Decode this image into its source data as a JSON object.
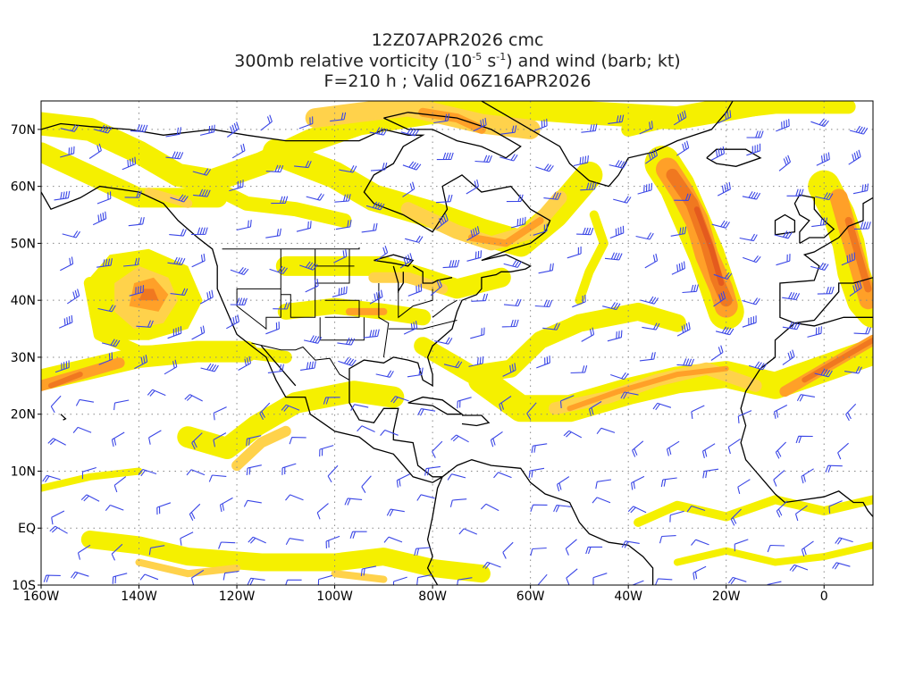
{
  "titles": {
    "line1": "12Z07APR2026 cmc",
    "line2_pre": "300mb relative vorticity (10",
    "line2_exp1": "-5",
    "line2_mid": " s",
    "line2_exp2": "-1",
    "line2_post": ") and wind (barb; kt)",
    "line3": "F=210 h ; Valid 06Z16APR2026"
  },
  "lat_labels": [
    "70N",
    "60N",
    "50N",
    "40N",
    "30N",
    "20N",
    "10N",
    "EQ",
    "10S"
  ],
  "lon_labels": [
    "160W",
    "140W",
    "120W",
    "100W",
    "80W",
    "60W",
    "40W",
    "20W",
    "0"
  ],
  "colors": {
    "pale_yellow": "#ffffbe",
    "yellow": "#f5f000",
    "light_orange": "#ffd24b",
    "orange": "#ffa028",
    "dark_orange": "#f07820",
    "red_orange": "#e45a1e",
    "barb": "#3a46e6",
    "coast": "#000000"
  },
  "map": {
    "lon_range": [
      -160,
      10
    ],
    "lat_range": [
      -10,
      75
    ],
    "grid": "dotted"
  }
}
